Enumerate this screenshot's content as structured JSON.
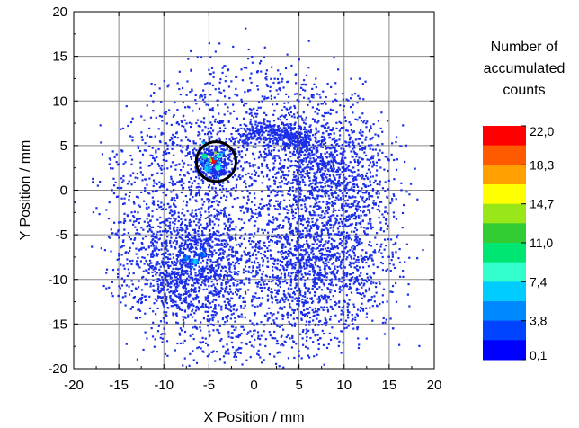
{
  "chart_data": {
    "type": "scatter",
    "title": "",
    "xlabel": "X Position / mm",
    "ylabel": "Y Position / mm",
    "xlim": [
      -20,
      20
    ],
    "ylim": [
      -20,
      20
    ],
    "xticks": [
      "-20",
      "-15",
      "-10",
      "-5",
      "0",
      "5",
      "10",
      "15",
      "20"
    ],
    "yticks": [
      "-20",
      "-15",
      "-10",
      "-5",
      "0",
      "5",
      "10",
      "15",
      "20"
    ],
    "grid": true,
    "point_color": "#1a2ee8",
    "colorbar": {
      "title": [
        "Number of",
        "accumulated",
        "counts"
      ],
      "min": 0.1,
      "max": 22.0,
      "tick_labels": [
        "22,0",
        "18,3",
        "14,7",
        "11,0",
        "7,4",
        "3,8",
        "0,1"
      ],
      "colors": [
        "#ff0000",
        "#ff5a00",
        "#ffa000",
        "#ffff00",
        "#99e619",
        "#33cc33",
        "#00e673",
        "#33ffcc",
        "#00ccff",
        "#0088ff",
        "#0044ff",
        "#0000ff"
      ]
    },
    "regions": [
      {
        "kind": "disk",
        "cx": 0.0,
        "cy": -3.0,
        "r": 16.0,
        "count": 3000
      },
      {
        "kind": "cluster",
        "cx": -7.0,
        "cy": -8.0,
        "sd": 3.2,
        "count": 1000
      },
      {
        "kind": "cluster",
        "cx": 7.0,
        "cy": -8.0,
        "sd": 3.6,
        "count": 900
      },
      {
        "kind": "cluster",
        "cx": 8.0,
        "cy": 2.0,
        "sd": 3.2,
        "count": 700
      },
      {
        "kind": "arc",
        "cx": 1.5,
        "cy": 3.0,
        "sd": 1.4,
        "count": 400
      },
      {
        "kind": "cluster",
        "cx": -4.5,
        "cy": 3.0,
        "sd": 1.1,
        "count": 350
      }
    ],
    "hotspots": [
      {
        "x": -4.5,
        "y": 3.3,
        "count": 22.0
      },
      {
        "x": -5.5,
        "y": 3.8,
        "count": 11.0
      },
      {
        "x": -4.0,
        "y": 2.5,
        "count": 9.0
      },
      {
        "x": -3.8,
        "y": 3.9,
        "count": 7.4
      },
      {
        "x": -5.2,
        "y": 2.4,
        "count": 6.0
      },
      {
        "x": -6.5,
        "y": -8.0,
        "count": 6.5
      },
      {
        "x": -5.8,
        "y": -7.2,
        "count": 5.0
      },
      {
        "x": -7.5,
        "y": -7.6,
        "count": 4.5
      }
    ],
    "marker_circle": {
      "cx": -4.2,
      "cy": 3.2,
      "r": 2.2
    }
  }
}
